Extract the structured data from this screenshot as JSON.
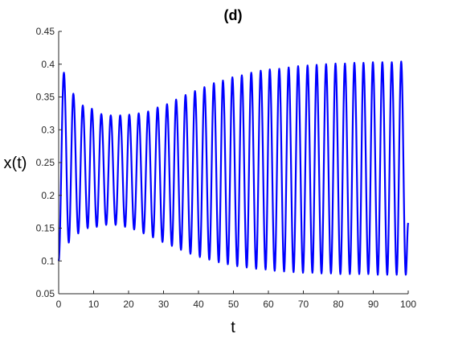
{
  "chart_data": {
    "type": "line",
    "title": "(d)",
    "xlabel": "t",
    "ylabel": "x(t)",
    "xlim": [
      0,
      100
    ],
    "ylim": [
      0.05,
      0.45
    ],
    "xticks": [
      0,
      10,
      20,
      30,
      40,
      50,
      60,
      70,
      80,
      90,
      100
    ],
    "xtick_labels": [
      "0",
      "10",
      "20",
      "30",
      "40",
      "50",
      "60",
      "70",
      "80",
      "90",
      "100"
    ],
    "yticks": [
      0.05,
      0.1,
      0.15,
      0.2,
      0.25,
      0.3,
      0.35,
      0.4,
      0.45
    ],
    "ytick_labels": [
      "0.05",
      "0.1",
      "0.15",
      "0.2",
      "0.25",
      "0.3",
      "0.35",
      "0.4",
      "0.45"
    ],
    "grid": false,
    "line_color": "#0000ff",
    "oscillation": {
      "period": 2.68,
      "start_value": 0.1,
      "end_value": 0.158,
      "peaks": [
        [
          1.5,
          0.387
        ],
        [
          4.2,
          0.355
        ],
        [
          6.9,
          0.337
        ],
        [
          9.5,
          0.332
        ],
        [
          12.2,
          0.324
        ],
        [
          14.9,
          0.322
        ],
        [
          17.6,
          0.322
        ],
        [
          20.2,
          0.323
        ],
        [
          22.9,
          0.325
        ],
        [
          25.6,
          0.328
        ],
        [
          28.3,
          0.334
        ],
        [
          31.0,
          0.339
        ],
        [
          33.6,
          0.346
        ],
        [
          36.3,
          0.353
        ],
        [
          39.0,
          0.359
        ],
        [
          41.7,
          0.365
        ],
        [
          44.4,
          0.371
        ],
        [
          47.0,
          0.375
        ],
        [
          49.7,
          0.38
        ],
        [
          52.4,
          0.383
        ],
        [
          55.1,
          0.387
        ],
        [
          57.8,
          0.39
        ],
        [
          60.4,
          0.392
        ],
        [
          63.1,
          0.393
        ],
        [
          65.8,
          0.395
        ],
        [
          68.5,
          0.397
        ],
        [
          71.2,
          0.398
        ],
        [
          73.8,
          0.399
        ],
        [
          76.5,
          0.4
        ],
        [
          79.2,
          0.401
        ],
        [
          81.9,
          0.401
        ],
        [
          84.6,
          0.402
        ],
        [
          87.2,
          0.402
        ],
        [
          89.9,
          0.403
        ],
        [
          92.6,
          0.403
        ],
        [
          95.3,
          0.403
        ],
        [
          98.0,
          0.404
        ]
      ],
      "troughs": [
        [
          2.9,
          0.128
        ],
        [
          5.6,
          0.142
        ],
        [
          8.3,
          0.15
        ],
        [
          10.9,
          0.152
        ],
        [
          13.6,
          0.155
        ],
        [
          16.3,
          0.155
        ],
        [
          19.0,
          0.152
        ],
        [
          21.6,
          0.148
        ],
        [
          24.3,
          0.142
        ],
        [
          27.0,
          0.136
        ],
        [
          29.7,
          0.129
        ],
        [
          32.4,
          0.123
        ],
        [
          35.0,
          0.117
        ],
        [
          37.7,
          0.111
        ],
        [
          40.4,
          0.106
        ],
        [
          43.1,
          0.102
        ],
        [
          45.8,
          0.098
        ],
        [
          48.4,
          0.095
        ],
        [
          51.1,
          0.092
        ],
        [
          53.8,
          0.09
        ],
        [
          56.5,
          0.088
        ],
        [
          59.2,
          0.087
        ],
        [
          61.8,
          0.085
        ],
        [
          64.5,
          0.084
        ],
        [
          67.2,
          0.083
        ],
        [
          69.9,
          0.082
        ],
        [
          72.6,
          0.082
        ],
        [
          75.2,
          0.081
        ],
        [
          77.9,
          0.081
        ],
        [
          80.6,
          0.08
        ],
        [
          83.3,
          0.08
        ],
        [
          86.0,
          0.08
        ],
        [
          88.6,
          0.08
        ],
        [
          91.3,
          0.079
        ],
        [
          94.0,
          0.079
        ],
        [
          96.7,
          0.079
        ],
        [
          99.3,
          0.079
        ]
      ]
    }
  }
}
